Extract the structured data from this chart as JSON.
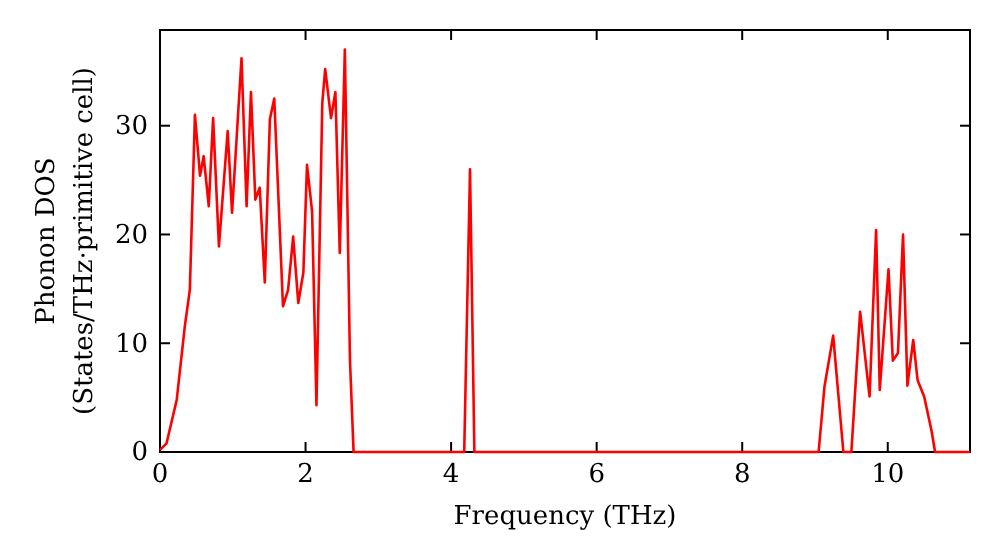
{
  "chart_data": {
    "type": "line",
    "xlabel": "Frequency (THz)",
    "ylabel": "Phonon DOS\n(States/THz·primitive cell)",
    "xlim": [
      0,
      11.13
    ],
    "ylim": [
      0,
      38.8
    ],
    "xticks": [
      0,
      2,
      4,
      6,
      8,
      10
    ],
    "yticks": [
      0,
      10,
      20,
      30
    ],
    "grid": false,
    "marker": "none",
    "line_style": "solid",
    "series": [
      {
        "color": "#ff0000",
        "x": [
          0,
          0.09,
          0.23,
          0.34,
          0.41,
          0.48,
          0.55,
          0.6,
          0.67,
          0.73,
          0.81,
          0.93,
          0.99,
          1.12,
          1.19,
          1.25,
          1.31,
          1.37,
          1.44,
          1.51,
          1.57,
          1.69,
          1.76,
          1.83,
          1.9,
          1.97,
          2.02,
          2.09,
          2.15,
          2.23,
          2.27,
          2.35,
          2.41,
          2.47,
          2.54,
          2.61,
          2.66,
          4.18,
          4.26,
          4.32,
          9.05,
          9.13,
          9.25,
          9.39,
          9.5,
          9.62,
          9.75,
          9.84,
          9.89,
          10.01,
          10.07,
          10.14,
          10.21,
          10.27,
          10.35,
          10.41,
          10.5,
          10.6,
          10.65,
          11.13
        ],
        "values": [
          0.2,
          0.8,
          4.8,
          11.5,
          14.9,
          31,
          25.4,
          27.2,
          22.6,
          30.7,
          18.9,
          29.5,
          22,
          36.2,
          22.6,
          33.1,
          23.2,
          24.3,
          15.6,
          30.6,
          32.5,
          13.4,
          14.9,
          19.8,
          13.7,
          16.5,
          26.4,
          22.1,
          4.3,
          32.1,
          35.2,
          30.7,
          33.1,
          18.3,
          37,
          8.5,
          0,
          0,
          26,
          0,
          0,
          6,
          10.7,
          0,
          0,
          12.9,
          5.1,
          20.4,
          5.7,
          16.8,
          8.4,
          9.1,
          20,
          6.1,
          10.3,
          6.6,
          5.1,
          2,
          0,
          0
        ]
      }
    ]
  }
}
